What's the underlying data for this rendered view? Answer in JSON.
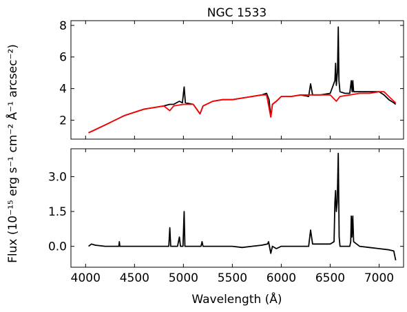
{
  "figure": {
    "ylabel": "Flux (10⁻¹⁵ erg s⁻¹ cm⁻² Å⁻¹ arcsec⁻²)",
    "xlabel": "Wavelength (Å)"
  },
  "chart_data": [
    {
      "type": "line",
      "title": "NGC 1533",
      "xlim": [
        3850,
        7250
      ],
      "ylim": [
        0.8,
        8.3
      ],
      "xticks": [
        4000,
        4500,
        5000,
        5500,
        6000,
        6500,
        7000
      ],
      "yticks": [
        2,
        4,
        6,
        8
      ],
      "ytick_labels": [
        "2",
        "4",
        "6",
        "8"
      ],
      "series": [
        {
          "color": "#000000",
          "x": [
            4030,
            4100,
            4200,
            4300,
            4400,
            4500,
            4600,
            4700,
            4800,
            4860,
            4900,
            4959,
            4990,
            5007,
            5020,
            5100,
            5170,
            5200,
            5300,
            5400,
            5500,
            5600,
            5700,
            5800,
            5850,
            5875,
            5893,
            5910,
            5950,
            6000,
            6100,
            6200,
            6280,
            6300,
            6320,
            6400,
            6500,
            6548,
            6555,
            6563,
            6575,
            6583,
            6590,
            6600,
            6650,
            6700,
            6716,
            6725,
            6731,
            6740,
            6800,
            6900,
            7000,
            7050,
            7100,
            7150,
            7170
          ],
          "y": [
            1.2,
            1.4,
            1.7,
            2.0,
            2.3,
            2.5,
            2.7,
            2.8,
            2.9,
            3.0,
            3.0,
            3.2,
            3.1,
            4.1,
            3.1,
            3.0,
            2.4,
            2.9,
            3.2,
            3.3,
            3.3,
            3.4,
            3.5,
            3.6,
            3.7,
            3.3,
            2.2,
            3.0,
            3.2,
            3.5,
            3.5,
            3.6,
            3.5,
            4.3,
            3.6,
            3.6,
            3.7,
            4.5,
            5.6,
            4.2,
            5.1,
            7.9,
            4.5,
            3.8,
            3.7,
            3.7,
            4.5,
            3.8,
            4.5,
            3.8,
            3.8,
            3.8,
            3.8,
            3.6,
            3.3,
            3.1,
            3.0
          ]
        },
        {
          "color": "#ff0000",
          "x": [
            4030,
            4100,
            4200,
            4300,
            4400,
            4500,
            4600,
            4700,
            4800,
            4860,
            4900,
            5000,
            5100,
            5170,
            5200,
            5300,
            5400,
            5500,
            5600,
            5700,
            5800,
            5850,
            5893,
            5910,
            5950,
            6000,
            6100,
            6200,
            6300,
            6400,
            6500,
            6563,
            6600,
            6700,
            6800,
            6900,
            7000,
            7050,
            7100,
            7150,
            7170
          ],
          "y": [
            1.2,
            1.4,
            1.7,
            2.0,
            2.3,
            2.5,
            2.7,
            2.8,
            2.9,
            2.6,
            2.9,
            3.0,
            3.0,
            2.4,
            2.9,
            3.2,
            3.3,
            3.3,
            3.4,
            3.5,
            3.6,
            3.6,
            2.2,
            3.0,
            3.2,
            3.5,
            3.5,
            3.6,
            3.6,
            3.6,
            3.6,
            3.2,
            3.5,
            3.6,
            3.7,
            3.7,
            3.8,
            3.8,
            3.5,
            3.2,
            3.1
          ]
        }
      ]
    },
    {
      "type": "line",
      "xlim": [
        3850,
        7250
      ],
      "ylim": [
        -0.9,
        4.2
      ],
      "xticks": [
        4000,
        4500,
        5000,
        5500,
        6000,
        6500,
        7000
      ],
      "xtick_labels": [
        "4000",
        "4500",
        "5000",
        "5500",
        "6000",
        "6500",
        "7000"
      ],
      "yticks": [
        0.0,
        1.5,
        3.0
      ],
      "ytick_labels": [
        "0.0",
        "1.5",
        "3.0"
      ],
      "series": [
        {
          "color": "#000000",
          "x": [
            4030,
            4060,
            4100,
            4200,
            4340,
            4345,
            4350,
            4500,
            4700,
            4850,
            4861,
            4870,
            4940,
            4959,
            4970,
            4995,
            5007,
            5015,
            5100,
            5180,
            5190,
            5200,
            5300,
            5400,
            5500,
            5600,
            5700,
            5800,
            5860,
            5870,
            5893,
            5910,
            5950,
            6000,
            6100,
            6200,
            6280,
            6300,
            6320,
            6400,
            6500,
            6540,
            6548,
            6555,
            6563,
            6572,
            6583,
            6592,
            6600,
            6650,
            6700,
            6710,
            6716,
            6722,
            6731,
            6740,
            6800,
            6900,
            7000,
            7100,
            7150,
            7165,
            7170
          ],
          "y": [
            0.0,
            0.1,
            0.05,
            0.0,
            0.0,
            0.2,
            0.0,
            0.0,
            0.0,
            0.0,
            0.8,
            0.0,
            0.0,
            0.4,
            0.0,
            0.0,
            1.5,
            0.0,
            0.0,
            0.0,
            0.2,
            0.0,
            0.0,
            0.0,
            0.0,
            -0.05,
            0.0,
            0.05,
            0.1,
            0.2,
            -0.3,
            0.0,
            -0.1,
            0.0,
            0.0,
            0.0,
            0.0,
            0.7,
            0.1,
            0.1,
            0.1,
            0.2,
            1.9,
            2.4,
            1.5,
            1.9,
            4.0,
            0.4,
            0.0,
            0.0,
            0.0,
            0.2,
            1.3,
            0.4,
            1.3,
            0.2,
            0.0,
            -0.05,
            -0.1,
            -0.15,
            -0.2,
            -0.5,
            -0.6
          ]
        }
      ]
    }
  ]
}
